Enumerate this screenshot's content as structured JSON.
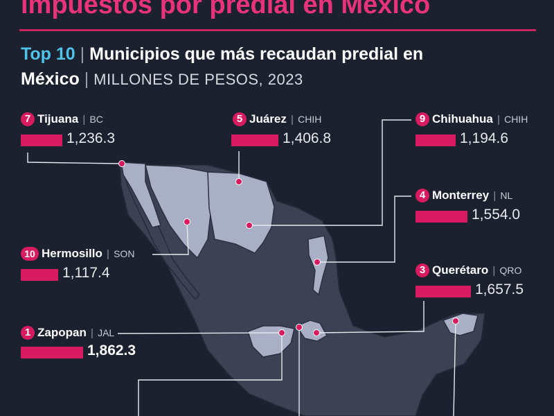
{
  "header": {
    "headline": "impuestos por predial en México",
    "top": "Top 10",
    "subtitle_a": "Municipios que más recaudan predial en",
    "subtitle_b": "México",
    "unit_year": "MILLONES DE PESOS, 2023",
    "sep": "|"
  },
  "colors": {
    "accent": "#d81b60",
    "title": "#e8337a",
    "highlight": "#4fc3e8",
    "background": "#1c2130",
    "map_dark": "#3c4254",
    "map_light": "#a9b0c6"
  },
  "chart_data": {
    "type": "bar",
    "title": "Top 10 | Municipios que más recaudan predial en México | MILLONES DE PESOS, 2023",
    "unit": "MILLONES DE PESOS, 2023",
    "entries": [
      {
        "rank": "7",
        "city": "Tijuana",
        "state": "BC",
        "value": 1236.3,
        "value_label": "1,236.3"
      },
      {
        "rank": "5",
        "city": "Juárez",
        "state": "CHIH",
        "value": 1406.8,
        "value_label": "1,406.8"
      },
      {
        "rank": "9",
        "city": "Chihuahua",
        "state": "CHIH",
        "value": 1194.6,
        "value_label": "1,194.6"
      },
      {
        "rank": "4",
        "city": "Monterrey",
        "state": "NL",
        "value": 1554.0,
        "value_label": "1,554.0"
      },
      {
        "rank": "10",
        "city": "Hermosillo",
        "state": "SON",
        "value": 1117.4,
        "value_label": "1,117.4"
      },
      {
        "rank": "3",
        "city": "Querétaro",
        "state": "QRO",
        "value": 1657.5,
        "value_label": "1,657.5"
      },
      {
        "rank": "1",
        "city": "Zapopan",
        "state": "JAL",
        "value": 1862.3,
        "value_label": "1,862.3"
      }
    ]
  }
}
